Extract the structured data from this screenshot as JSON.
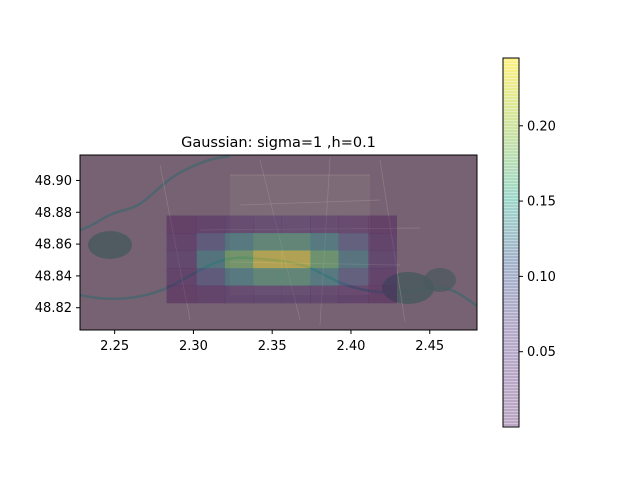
{
  "chart_data": {
    "type": "heatmap",
    "title": "Gaussian: sigma=1 ,h=0.1",
    "xlabel": "",
    "ylabel": "",
    "xlim": [
      2.228,
      2.48
    ],
    "ylim": [
      48.806,
      48.916
    ],
    "x_ticks": [
      "2.25",
      "2.30",
      "2.35",
      "2.40",
      "2.45"
    ],
    "x_tick_values": [
      2.25,
      2.3,
      2.35,
      2.4,
      2.45
    ],
    "y_ticks": [
      "48.82",
      "48.84",
      "48.86",
      "48.88",
      "48.90"
    ],
    "y_tick_values": [
      48.82,
      48.84,
      48.86,
      48.88,
      48.9
    ],
    "grid": false,
    "colormap": "viridis",
    "alpha": 0.35,
    "background": "aerial map of Paris",
    "x_edges": [
      2.283,
      2.302,
      2.32,
      2.338,
      2.356,
      2.374,
      2.392,
      2.411,
      2.429
    ],
    "y_edges": [
      48.823,
      48.834,
      48.845,
      48.856,
      48.867,
      48.878
    ],
    "values": [
      [
        0.006,
        0.012,
        0.02,
        0.025,
        0.025,
        0.02,
        0.012,
        0.006
      ],
      [
        0.012,
        0.06,
        0.12,
        0.15,
        0.15,
        0.12,
        0.06,
        0.012
      ],
      [
        0.02,
        0.12,
        0.19,
        0.24,
        0.24,
        0.18,
        0.11,
        0.02
      ],
      [
        0.012,
        0.06,
        0.12,
        0.15,
        0.15,
        0.12,
        0.06,
        0.012
      ],
      [
        0.006,
        0.012,
        0.02,
        0.025,
        0.025,
        0.02,
        0.012,
        0.006
      ]
    ],
    "colorbar": {
      "vmin": 0.0,
      "vmax": 0.245,
      "ticks": [
        "0.05",
        "0.10",
        "0.15",
        "0.20"
      ],
      "tick_values": [
        0.05,
        0.1,
        0.15,
        0.2
      ]
    }
  }
}
